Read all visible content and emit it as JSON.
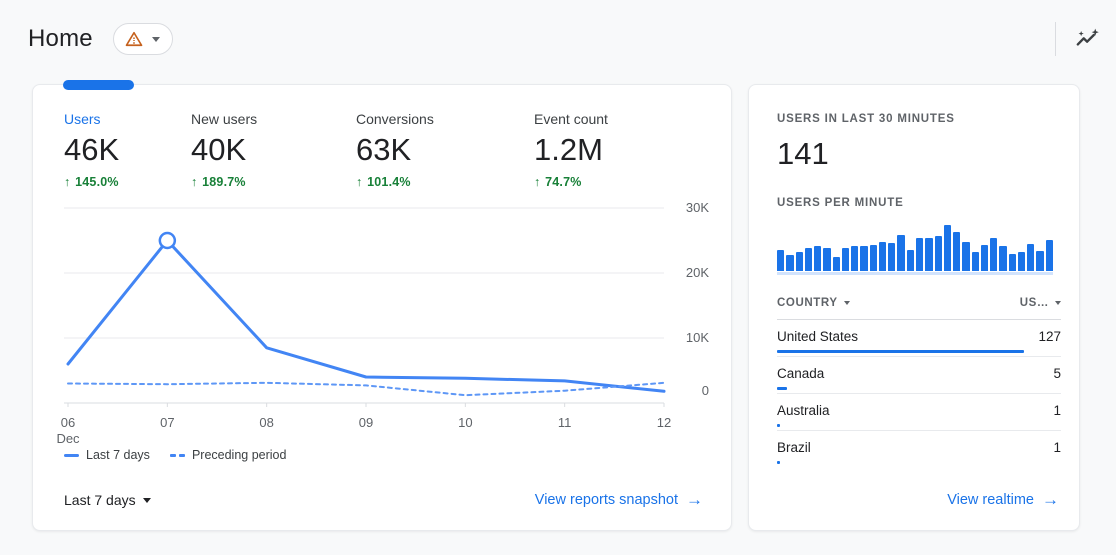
{
  "colors": {
    "accent_blue": "#1a73e8",
    "chart_line_solid": "#4285f4",
    "chart_line_dashed": "#5e97f6",
    "bar_blue": "#1a73e8",
    "positive_green": "#188038",
    "warning_orange": "#c5611d"
  },
  "glyphs": {
    "up_arrow": "↑",
    "arrow_right": "→"
  },
  "header": {
    "title": "Home",
    "warning_icon": "warning-triangle",
    "insights_icon": "insights-sparkline"
  },
  "overview_card": {
    "metrics": [
      {
        "label": "Users",
        "value": "46K",
        "delta": "145.0%",
        "active": true
      },
      {
        "label": "New users",
        "value": "40K",
        "delta": "189.7%",
        "active": false
      },
      {
        "label": "Conversions",
        "value": "63K",
        "delta": "101.4%",
        "active": false
      },
      {
        "label": "Event count",
        "value": "1.2M",
        "delta": "74.7%",
        "active": false
      }
    ],
    "legend": [
      {
        "label": "Last 7 days",
        "style": "solid"
      },
      {
        "label": "Preceding period",
        "style": "dashed"
      }
    ],
    "date_range": "Last 7 days",
    "link_label": "View reports snapshot"
  },
  "realtime_card": {
    "users_30min_label": "USERS IN LAST 30 MINUTES",
    "users_30min_value": "141",
    "per_minute_label": "USERS PER MINUTE",
    "table": {
      "col1": "COUNTRY",
      "col2": "US…",
      "rows": [
        {
          "name": "United States",
          "value": 127
        },
        {
          "name": "Canada",
          "value": 5
        },
        {
          "name": "Australia",
          "value": 1
        },
        {
          "name": "Brazil",
          "value": 1
        }
      ]
    },
    "link_label": "View realtime"
  },
  "chart_data": [
    {
      "type": "line",
      "title": "Users by day",
      "x": [
        "06",
        "07",
        "08",
        "09",
        "10",
        "11",
        "12"
      ],
      "x_sublabel": {
        "index": 0,
        "label": "Dec"
      },
      "series": [
        {
          "name": "Last 7 days",
          "style": "solid",
          "color": "#4285f4",
          "values": [
            6000,
            25000,
            8500,
            4000,
            3800,
            3400,
            1800
          ]
        },
        {
          "name": "Preceding period",
          "style": "dashed",
          "color": "#5e97f6",
          "values": [
            3000,
            2900,
            3100,
            2700,
            1200,
            1900,
            3100
          ]
        }
      ],
      "ylim": [
        0,
        30000
      ],
      "yticks": [
        0,
        10000,
        20000,
        30000
      ],
      "ytick_labels": [
        "0",
        "10K",
        "20K",
        "30K"
      ],
      "grid": true,
      "yaxis_position": "right",
      "legend_position": "bottom",
      "marker": {
        "series": 0,
        "index": 1
      }
    },
    {
      "type": "bar",
      "title": "USERS PER MINUTE",
      "values": [
        46,
        35,
        41,
        50,
        54,
        50,
        31,
        50,
        54,
        54,
        57,
        63,
        61,
        78,
        46,
        72,
        72,
        76,
        100,
        85,
        63,
        41,
        57,
        72,
        54,
        38,
        41,
        59,
        44,
        67
      ],
      "ymax": 100,
      "xlabel": "",
      "ylabel": ""
    }
  ]
}
